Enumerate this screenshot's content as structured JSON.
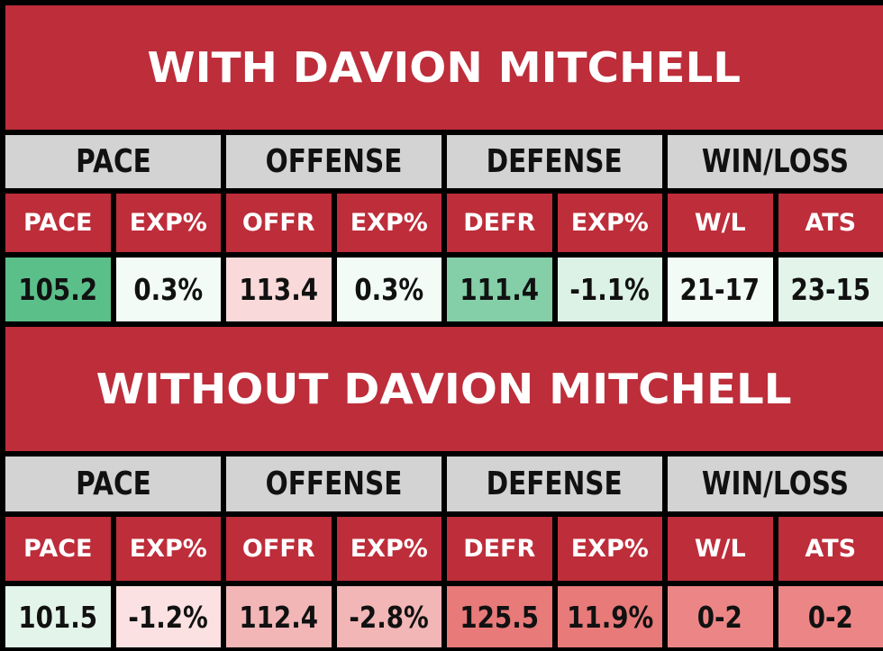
{
  "with_section": {
    "title": "WITH DAVION MITCHELL",
    "groups": [
      "PACE",
      "OFFENSE",
      "DEFENSE",
      "WIN/LOSS"
    ],
    "subheaders": [
      "PACE",
      "EXP%",
      "OFFR",
      "EXP%",
      "DEFR",
      "EXP%",
      "W/L",
      "ATS"
    ],
    "values": [
      "105.2",
      "0.3%",
      "113.4",
      "0.3%",
      "111.4",
      "-1.1%",
      "21-17",
      "23-15"
    ],
    "cell_colors": [
      "#5bbf8a",
      "#f2fbf6",
      "#f9d9d9",
      "#f2fbf6",
      "#84cfa8",
      "#ddf2e6",
      "#f2fbf6",
      "#e3f4ea"
    ]
  },
  "without_section": {
    "title": "WITHOUT DAVION MITCHELL",
    "groups": [
      "PACE",
      "OFFENSE",
      "DEFENSE",
      "WIN/LOSS"
    ],
    "subheaders": [
      "PACE",
      "EXP%",
      "OFFR",
      "EXP%",
      "DEFR",
      "EXP%",
      "W/L",
      "ATS"
    ],
    "values": [
      "101.5",
      "-1.2%",
      "112.4",
      "-2.8%",
      "125.5",
      "11.9%",
      "0-2",
      "0-2"
    ],
    "cell_colors": [
      "#e3f4ea",
      "#fbe1e1",
      "#f2b6b6",
      "#f2b6b6",
      "#e87a7a",
      "#e87a7a",
      "#ec8686",
      "#ec8686"
    ]
  }
}
